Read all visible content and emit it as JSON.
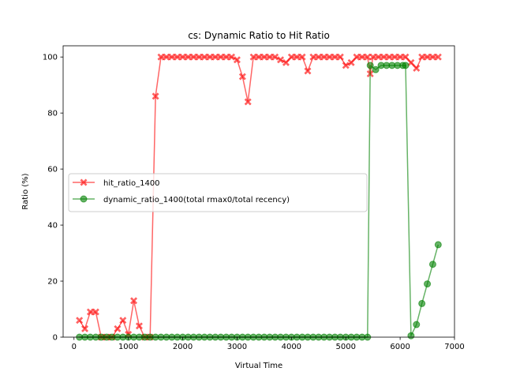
{
  "chart_data": {
    "type": "line",
    "title": "cs: Dynamic Ratio to Hit Ratio",
    "xlabel": "Virtual Time",
    "ylabel": "Ratio (%)",
    "xlim": [
      -200,
      7000
    ],
    "ylim": [
      0,
      104
    ],
    "xticks": [
      0,
      1000,
      2000,
      3000,
      4000,
      5000,
      6000,
      7000
    ],
    "yticks": [
      0,
      20,
      40,
      60,
      80,
      100
    ],
    "grid": false,
    "legend_position": "center-left",
    "series": [
      {
        "name": "hit_ratio_1400",
        "color": "#ff0000",
        "marker": "x-filled",
        "points": [
          [
            100,
            6
          ],
          [
            200,
            3
          ],
          [
            300,
            9
          ],
          [
            400,
            9
          ],
          [
            500,
            0
          ],
          [
            600,
            0
          ],
          [
            700,
            0
          ],
          [
            800,
            3
          ],
          [
            900,
            6
          ],
          [
            1000,
            1
          ],
          [
            1100,
            13
          ],
          [
            1200,
            4
          ],
          [
            1300,
            0
          ],
          [
            1400,
            0
          ],
          [
            1500,
            86
          ],
          [
            1600,
            100
          ],
          [
            1700,
            100
          ],
          [
            1800,
            100
          ],
          [
            1900,
            100
          ],
          [
            2000,
            100
          ],
          [
            2100,
            100
          ],
          [
            2200,
            100
          ],
          [
            2300,
            100
          ],
          [
            2400,
            100
          ],
          [
            2500,
            100
          ],
          [
            2600,
            100
          ],
          [
            2700,
            100
          ],
          [
            2800,
            100
          ],
          [
            2900,
            100
          ],
          [
            3000,
            99
          ],
          [
            3100,
            93
          ],
          [
            3200,
            84
          ],
          [
            3300,
            100
          ],
          [
            3400,
            100
          ],
          [
            3500,
            100
          ],
          [
            3600,
            100
          ],
          [
            3700,
            100
          ],
          [
            3800,
            99
          ],
          [
            3900,
            98
          ],
          [
            4000,
            100
          ],
          [
            4100,
            100
          ],
          [
            4200,
            100
          ],
          [
            4300,
            95
          ],
          [
            4400,
            100
          ],
          [
            4500,
            100
          ],
          [
            4600,
            100
          ],
          [
            4700,
            100
          ],
          [
            4800,
            100
          ],
          [
            4900,
            100
          ],
          [
            5000,
            97
          ],
          [
            5100,
            98
          ],
          [
            5200,
            100
          ],
          [
            5300,
            100
          ],
          [
            5400,
            100
          ],
          [
            5450,
            94
          ],
          [
            5500,
            100
          ],
          [
            5600,
            100
          ],
          [
            5700,
            100
          ],
          [
            5800,
            100
          ],
          [
            5900,
            100
          ],
          [
            6000,
            100
          ],
          [
            6100,
            100
          ],
          [
            6200,
            98
          ],
          [
            6300,
            96
          ],
          [
            6400,
            100
          ],
          [
            6500,
            100
          ],
          [
            6600,
            100
          ],
          [
            6700,
            100
          ]
        ]
      },
      {
        "name": "dynamic_ratio_1400(total rmax0/total recency)",
        "color": "#008000",
        "marker": "circle",
        "points": [
          [
            100,
            0
          ],
          [
            200,
            0
          ],
          [
            300,
            0
          ],
          [
            400,
            0
          ],
          [
            500,
            0
          ],
          [
            600,
            0
          ],
          [
            700,
            0
          ],
          [
            800,
            0
          ],
          [
            900,
            0
          ],
          [
            1000,
            0
          ],
          [
            1100,
            0
          ],
          [
            1200,
            0
          ],
          [
            1300,
            0
          ],
          [
            1400,
            0
          ],
          [
            1500,
            0
          ],
          [
            1600,
            0
          ],
          [
            1700,
            0
          ],
          [
            1800,
            0
          ],
          [
            1900,
            0
          ],
          [
            2000,
            0
          ],
          [
            2100,
            0
          ],
          [
            2200,
            0
          ],
          [
            2300,
            0
          ],
          [
            2400,
            0
          ],
          [
            2500,
            0
          ],
          [
            2600,
            0
          ],
          [
            2700,
            0
          ],
          [
            2800,
            0
          ],
          [
            2900,
            0
          ],
          [
            3000,
            0
          ],
          [
            3100,
            0
          ],
          [
            3200,
            0
          ],
          [
            3300,
            0
          ],
          [
            3400,
            0
          ],
          [
            3500,
            0
          ],
          [
            3600,
            0
          ],
          [
            3700,
            0
          ],
          [
            3800,
            0
          ],
          [
            3900,
            0
          ],
          [
            4000,
            0
          ],
          [
            4100,
            0
          ],
          [
            4200,
            0
          ],
          [
            4300,
            0
          ],
          [
            4400,
            0
          ],
          [
            4500,
            0
          ],
          [
            4600,
            0
          ],
          [
            4700,
            0
          ],
          [
            4800,
            0
          ],
          [
            4900,
            0
          ],
          [
            5000,
            0
          ],
          [
            5100,
            0
          ],
          [
            5200,
            0
          ],
          [
            5300,
            0
          ],
          [
            5400,
            0
          ],
          [
            5450,
            97
          ],
          [
            5550,
            95.5
          ],
          [
            5650,
            97
          ],
          [
            5750,
            97
          ],
          [
            5850,
            97
          ],
          [
            5950,
            97
          ],
          [
            6050,
            97
          ],
          [
            6100,
            97
          ],
          [
            6200,
            0.5
          ],
          [
            6300,
            4.5
          ],
          [
            6400,
            12
          ],
          [
            6500,
            19
          ],
          [
            6600,
            26
          ],
          [
            6700,
            33
          ]
        ]
      }
    ]
  }
}
